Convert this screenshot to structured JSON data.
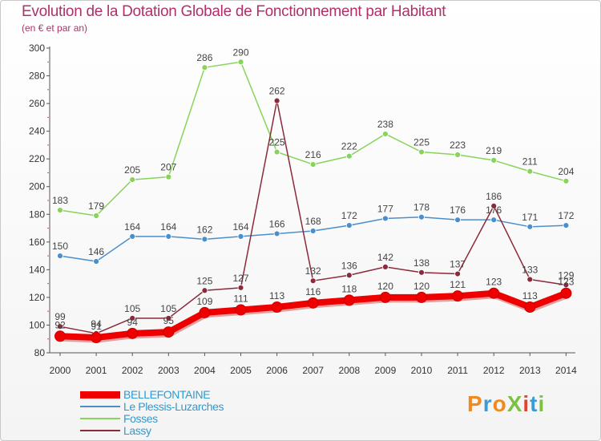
{
  "header": {
    "title": "Evolution de la Dotation Globale de Fonctionnement par Habitant",
    "subtitle": "(en € et par an)"
  },
  "logo": {
    "text": "ProXiti",
    "colors": [
      "#f08a1c",
      "#3a9bd6",
      "#f08a1c",
      "#7cc242",
      "#e8402a",
      "#3a9bd6",
      "#7cc242"
    ]
  },
  "chart_data": {
    "type": "line",
    "title": "Evolution de la Dotation Globale de Fonctionnement par Habitant",
    "subtitle": "(en € et par an)",
    "xlabel": "",
    "ylabel": "",
    "x": [
      "2000",
      "2001",
      "2002",
      "2003",
      "2004",
      "2005",
      "2006",
      "2007",
      "2008",
      "2009",
      "2010",
      "2011",
      "2012",
      "2013",
      "2014"
    ],
    "ylim": [
      80,
      300
    ],
    "yticks": [
      "80",
      "100",
      "120",
      "140",
      "160",
      "180",
      "200",
      "220",
      "240",
      "260",
      "280",
      "300"
    ],
    "grid": false,
    "legend": "bottom-left",
    "series": [
      {
        "name": "BELLEFONTAINE",
        "color": "#ee0000",
        "values": [
          92,
          91,
          94,
          95,
          109,
          111,
          113,
          116,
          118,
          120,
          120,
          121,
          123,
          113,
          123
        ],
        "labels": [
          "92",
          "91",
          "94",
          "95",
          "109",
          "111",
          "113",
          "116",
          "118",
          "120",
          "120",
          "121",
          "123",
          "113",
          "123"
        ]
      },
      {
        "name": "Le Plessis-Luzarches",
        "color": "#4a8fcc",
        "values": [
          150,
          146,
          164,
          164,
          162,
          164,
          166,
          168,
          172,
          177,
          178,
          176,
          176,
          171,
          172
        ],
        "labels": [
          "150",
          "146",
          "164",
          "164",
          "162",
          "164",
          "166",
          "168",
          "172",
          "177",
          "178",
          "176",
          "176",
          "171",
          "172"
        ]
      },
      {
        "name": "Fosses",
        "color": "#88d45a",
        "values": [
          183,
          179,
          205,
          207,
          286,
          290,
          225,
          216,
          222,
          238,
          225,
          223,
          219,
          211,
          204
        ],
        "labels": [
          "183",
          "179",
          "205",
          "207",
          "286",
          "290",
          "225",
          "216",
          "222",
          "238",
          "225",
          "223",
          "219",
          "211",
          "204"
        ]
      },
      {
        "name": "Lassy",
        "color": "#8a2a3a",
        "values": [
          99,
          94,
          105,
          105,
          125,
          127,
          262,
          132,
          136,
          142,
          138,
          137,
          186,
          133,
          129
        ],
        "labels": [
          "99",
          "94",
          "105",
          "105",
          "125",
          "127",
          "262",
          "132",
          "136",
          "142",
          "138",
          "137",
          "186",
          "133",
          "129"
        ]
      }
    ]
  }
}
